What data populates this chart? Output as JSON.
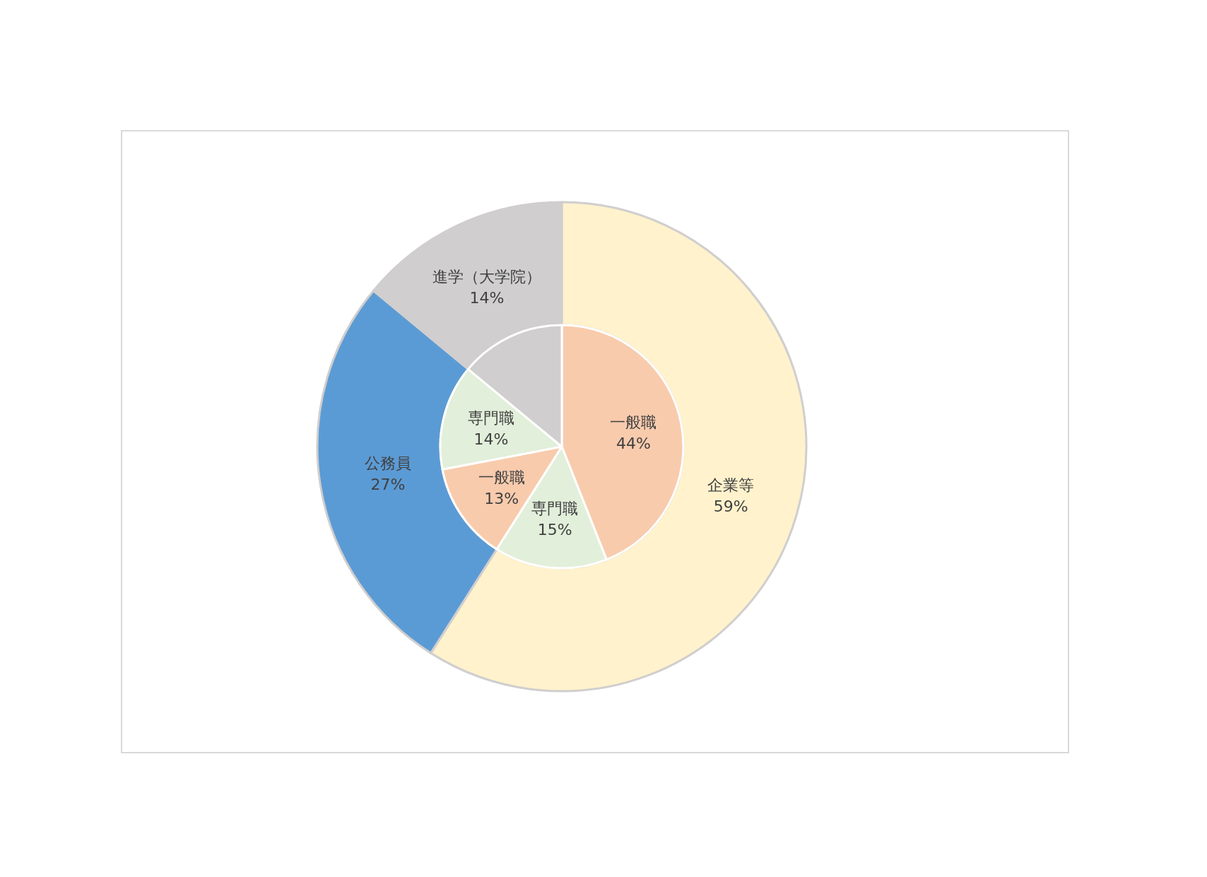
{
  "chart_data": [
    {
      "type": "donut",
      "categories": [
        "企業等",
        "公務員",
        "進学（大学院）"
      ],
      "values": [
        59,
        27,
        14
      ],
      "colors": [
        "#fff2cc",
        "#5b9bd5",
        "#d0cece"
      ],
      "value_labels": [
        "59%",
        "27%",
        "14%"
      ]
    },
    {
      "type": "pie",
      "categories": [
        "一般職",
        "専門職",
        "一般職",
        "専門職",
        null
      ],
      "values": [
        44,
        15,
        13,
        14,
        14
      ],
      "colors": [
        "#f8cbad",
        "#e2efda",
        "#f8cbad",
        "#e2efda",
        "#d0cece"
      ],
      "value_labels": [
        "44%",
        "15%",
        "13%",
        "14%",
        null
      ]
    }
  ]
}
